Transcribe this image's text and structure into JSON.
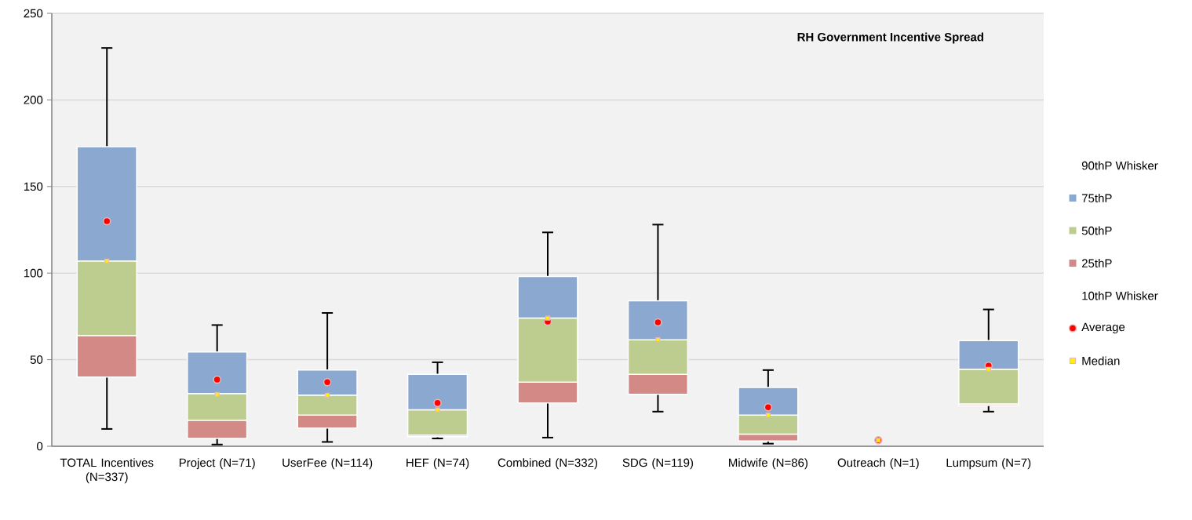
{
  "chart_data": {
    "type": "bar",
    "title": "RH Government Incentive Spread",
    "categories": [
      "TOTAL Incentives (N=337)",
      "Project (N=71)",
      "UserFee (N=114)",
      "HEF (N=74)",
      "Combined (N=332)",
      "SDG (N=119)",
      "Midwife (N=86)",
      "Outreach (N=1)",
      "Lumpsum (N=7)"
    ],
    "series": [
      {
        "name": "10thP Whisker",
        "color": "#000000",
        "values": [
          null,
          null,
          null,
          null,
          null,
          null,
          null,
          null,
          null
        ]
      },
      {
        "name": "25thP",
        "color": "#d38a87",
        "base": [
          40,
          4.5,
          10.5,
          5.5,
          25,
          30,
          3,
          null,
          23.5
        ],
        "values": [
          24,
          10.5,
          7.5,
          1,
          12,
          11.5,
          4,
          null,
          1
        ],
        "errors": [
          [
            10,
            64
          ],
          [
            1,
            15
          ],
          [
            2.5,
            18
          ],
          [
            4.5,
            6.5
          ],
          [
            5,
            37
          ],
          [
            20,
            41.5
          ],
          [
            1.5,
            7
          ],
          null,
          [
            20,
            24.5
          ]
        ]
      },
      {
        "name": "50thP",
        "color": "#bccd8f",
        "base": [
          64,
          15,
          18,
          6.5,
          37,
          41.5,
          7,
          null,
          24.5
        ],
        "values": [
          43,
          15.5,
          11.5,
          14.5,
          37,
          20,
          11,
          null,
          20
        ]
      },
      {
        "name": "75thP",
        "color": "#8aa8d0",
        "base": [
          107,
          30.5,
          29.5,
          21,
          74,
          61.5,
          18,
          null,
          44.5
        ],
        "values": [
          66,
          24,
          14.5,
          20.5,
          24,
          22.5,
          16,
          null,
          16.5
        ],
        "errors": [
          [
            173,
            230
          ],
          [
            54.5,
            70
          ],
          [
            44,
            77
          ],
          [
            41.5,
            48.5
          ],
          [
            98,
            123.5
          ],
          [
            84,
            128
          ],
          [
            34,
            44
          ],
          null,
          [
            61,
            79
          ]
        ]
      },
      {
        "name": "90thP Whisker",
        "color": "#000000",
        "values": [
          null,
          null,
          null,
          null,
          null,
          null,
          null,
          null,
          null
        ]
      },
      {
        "name": "Average",
        "type": "scatter",
        "marker": "circle",
        "color": "#ff0000",
        "values": [
          130,
          38.5,
          37,
          25,
          72,
          71.5,
          22.5,
          3.5,
          46.5
        ]
      },
      {
        "name": "Median",
        "type": "scatter",
        "marker": "square",
        "color": "#e6b8b7",
        "values": [
          107,
          30,
          29.5,
          21,
          74,
          61.5,
          18,
          3.5,
          44.5
        ]
      }
    ],
    "ylim": [
      0,
      250
    ],
    "yticks": [
      0,
      50,
      100,
      150,
      200,
      250
    ],
    "grid": "y",
    "legend": "right"
  }
}
